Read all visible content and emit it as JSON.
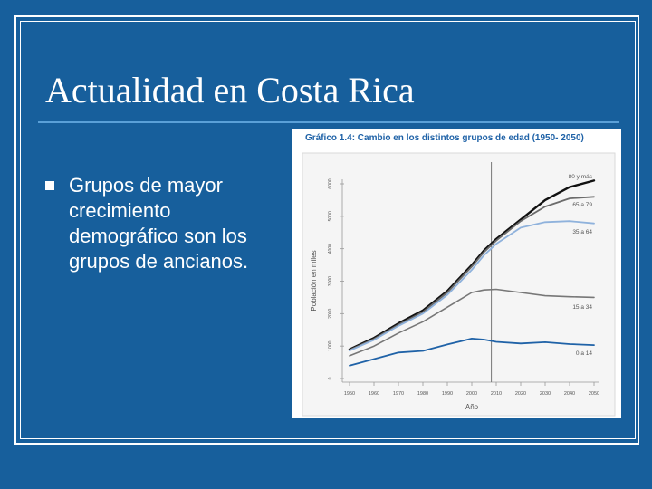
{
  "slide": {
    "title": "Actualidad en Costa Rica",
    "bullet": "Grupos de mayor crecimiento demográfico son los grupos de ancianos."
  },
  "colors": {
    "background": "#175f9c",
    "chart_title": "#1f62a7"
  },
  "chart_data": {
    "type": "line",
    "title": "Gráfico 1.4: Cambio en los distintos grupos de edad (1950- 2050)",
    "xlabel": "Año",
    "ylabel": "Población en miles",
    "x": [
      1950,
      1960,
      1970,
      1980,
      1990,
      2000,
      2005,
      2010,
      2020,
      2030,
      2040,
      2050
    ],
    "xticks": [
      1950,
      1960,
      1970,
      1980,
      1990,
      2000,
      2010,
      2020,
      2030,
      2040,
      2050
    ],
    "yticks": [
      0,
      1000,
      2000,
      3000,
      4000,
      5000,
      6000
    ],
    "xlim": [
      1950,
      2050
    ],
    "ylim": [
      0,
      6000
    ],
    "grid": false,
    "vline_x": 2008,
    "series": [
      {
        "name": "80 y más",
        "color": "#111111",
        "values": [
          900,
          1250,
          1700,
          2100,
          2700,
          3500,
          3950,
          4300,
          4900,
          5500,
          5900,
          6100
        ]
      },
      {
        "name": "65 a 79",
        "color": "#6b6b6b",
        "values": [
          880,
          1220,
          1660,
          2050,
          2650,
          3450,
          3900,
          4250,
          4850,
          5300,
          5550,
          5600
        ]
      },
      {
        "name": "35 a 64",
        "color": "#8fb2dc",
        "values": [
          860,
          1190,
          1620,
          2000,
          2580,
          3350,
          3800,
          4150,
          4650,
          4820,
          4850,
          4780
        ]
      },
      {
        "name": "15 a 34",
        "color": "#777777",
        "values": [
          700,
          1000,
          1400,
          1750,
          2200,
          2650,
          2730,
          2750,
          2650,
          2550,
          2520,
          2500
        ]
      },
      {
        "name": "0 a 14",
        "color": "#1f62a7",
        "values": [
          400,
          600,
          800,
          850,
          1050,
          1230,
          1200,
          1130,
          1080,
          1120,
          1060,
          1030
        ]
      }
    ]
  }
}
